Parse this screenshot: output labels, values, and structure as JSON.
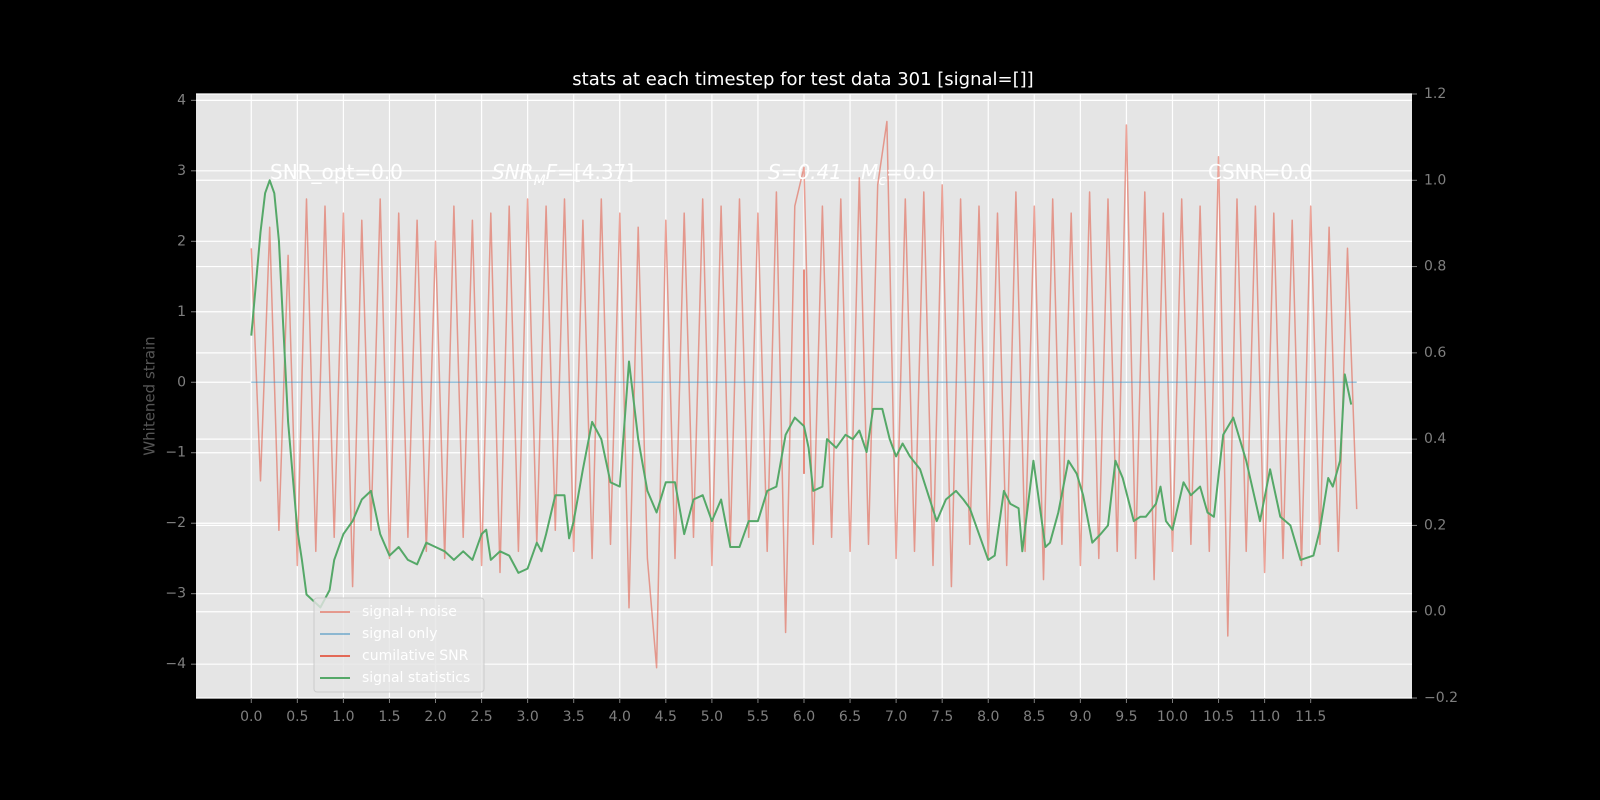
{
  "chart_data": {
    "type": "line",
    "title": "stats at each timestep for test data 301 [signal=[]]",
    "y_label": "Whitened strain",
    "grid": true,
    "legend": "lower left",
    "xlim": [
      -0.6,
      12.6
    ],
    "xticks": [
      {
        "value": 0,
        "label": "0.0"
      },
      0.5,
      {
        "value": 1,
        "label": "1.0"
      },
      1.5,
      {
        "value": 2,
        "label": "2.0"
      },
      2.5,
      {
        "value": 3,
        "label": "3.0"
      },
      3.5,
      {
        "value": 4,
        "label": "4.0"
      },
      4.5,
      {
        "value": 5,
        "label": "5.0"
      },
      5.5,
      {
        "value": 6,
        "label": "6.0"
      },
      6.5,
      {
        "value": 7,
        "label": "7.0"
      },
      7.5,
      {
        "value": 8,
        "label": "8.0"
      },
      8.5,
      {
        "value": 9,
        "label": "9.0"
      },
      9.5,
      {
        "value": 10,
        "label": "10.0"
      },
      10.5,
      {
        "value": 11,
        "label": "11.0"
      },
      11.5
    ],
    "ylim": [
      -4.48,
      4.09
    ],
    "yticks": [
      {
        "value": -4,
        "label": "−4"
      },
      {
        "value": -3,
        "label": "−3"
      },
      {
        "value": -2,
        "label": "−2"
      },
      {
        "value": -1,
        "label": "−1"
      },
      0,
      1,
      2,
      3,
      4
    ],
    "y2lim": [
      -0.2,
      1.2
    ],
    "y2ticks": [
      {
        "value": -0.2,
        "label": "−0.2"
      },
      {
        "value": 0,
        "label": "0.0"
      },
      0.2,
      0.4,
      0.6,
      0.8,
      {
        "value": 1,
        "label": "1.0"
      },
      1.2
    ],
    "annotations": [
      [
        {
          "text": "SNR_opt=0.0"
        }
      ],
      [
        {
          "text": "SNR",
          "italic": true
        },
        {
          "text": "M",
          "italic": true,
          "sub": true
        },
        {
          "text": "F",
          "italic": true
        },
        {
          "text": "=[4.37]"
        }
      ],
      [
        {
          "text": "S=0.41",
          "italic": true
        },
        {
          "text": "   M",
          "italic": true
        },
        {
          "text": "c",
          "italic": true,
          "sub": true
        },
        {
          "text": "=0.0"
        }
      ],
      [
        {
          "text": "CSNR=0.0"
        }
      ]
    ],
    "series": [
      {
        "name": "signal+ noise",
        "color": "#e24a33",
        "alpha": 0.5,
        "x": [
          0,
          0.1,
          0.2,
          0.3,
          0.4,
          0.5,
          0.6,
          0.7,
          0.8,
          0.9,
          1,
          1.1,
          1.2,
          1.3,
          1.4,
          1.5,
          1.6,
          1.7,
          1.8,
          1.9,
          2,
          2.1,
          2.2,
          2.3,
          2.4,
          2.5,
          2.6,
          2.7,
          2.8,
          2.9,
          3,
          3.1,
          3.2,
          3.3,
          3.4,
          3.5,
          3.6,
          3.7,
          3.8,
          3.9,
          4,
          4.1,
          4.2,
          4.3,
          4.4,
          4.5,
          4.6,
          4.7,
          4.8,
          4.9,
          5,
          5.1,
          5.2,
          5.3,
          5.4,
          5.5,
          5.6,
          5.7,
          5.8,
          5.9,
          6,
          6.1,
          6.2,
          6.3,
          6.4,
          6.5,
          6.6,
          6.7,
          6.8,
          6.9,
          7,
          7.1,
          7.2,
          7.3,
          7.4,
          7.5,
          7.6,
          7.7,
          7.8,
          7.9,
          8,
          8.1,
          8.2,
          8.3,
          8.4,
          8.5,
          8.6,
          8.7,
          8.8,
          8.9,
          9,
          9.1,
          9.2,
          9.3,
          9.4,
          9.5,
          9.6,
          9.7,
          9.8,
          9.9,
          10,
          10.1,
          10.2,
          10.3,
          10.4,
          10.5,
          10.6,
          10.7,
          10.8,
          10.9,
          11,
          11.1,
          11.2,
          11.3,
          11.4,
          11.5,
          11.6,
          11.7,
          11.8,
          11.9,
          12
        ],
        "values": [
          1.9,
          -1.4,
          2.2,
          -2.1,
          1.8,
          -2.6,
          2.6,
          -2.4,
          2.5,
          -2.2,
          2.4,
          -2.9,
          2.3,
          -2.1,
          2.6,
          -2.5,
          2.4,
          -2.2,
          2.3,
          -2.4,
          2.0,
          -2.5,
          2.5,
          -2.2,
          2.3,
          -2.6,
          2.4,
          -2.7,
          2.5,
          -2.4,
          2.6,
          -2.3,
          2.5,
          -2.1,
          2.6,
          -2.4,
          2.3,
          -2.5,
          2.6,
          -2.3,
          2.4,
          -3.2,
          2.2,
          -2.5,
          -4.05,
          2.3,
          -2.5,
          2.4,
          -2.2,
          2.6,
          -2.6,
          2.5,
          -2.3,
          2.6,
          -2.2,
          2.4,
          -2.4,
          2.7,
          -3.55,
          2.5,
          3.05,
          -2.3,
          2.5,
          -2.2,
          2.6,
          -2.4,
          2.9,
          -2.3,
          2.8,
          3.7,
          -2.5,
          2.6,
          -2.4,
          2.7,
          -2.6,
          2.8,
          -2.9,
          2.6,
          -2.3,
          2.5,
          -2.5,
          2.4,
          -2.6,
          2.7,
          -2.4,
          2.5,
          -2.8,
          2.6,
          -2.3,
          2.4,
          -2.6,
          2.7,
          -2.5,
          2.6,
          -2.4,
          3.65,
          -2.5,
          2.7,
          -2.8,
          2.4,
          -2.4,
          2.6,
          -2.3,
          2.5,
          -2.4,
          3.2,
          -3.6,
          2.6,
          -2.4,
          2.5,
          -2.7,
          2.4,
          -2.5,
          2.3,
          -2.6,
          2.5,
          -2.3,
          2.2,
          -2.4,
          1.9,
          -1.8
        ]
      },
      {
        "name": "signal only",
        "color": "#348abd",
        "alpha": 0.5,
        "x": [
          0,
          12
        ],
        "values": [
          0,
          0
        ]
      },
      {
        "name": "cumilative SNR",
        "color": "#e24a33",
        "alpha": 0.8,
        "x": [
          6,
          6
        ],
        "values": [
          1.6,
          -1.3
        ]
      },
      {
        "name": "signal statistics",
        "color": "#55a868",
        "alpha": 1,
        "axis": "y2",
        "x": [
          0,
          0.1,
          0.15,
          0.2,
          0.25,
          0.3,
          0.4,
          0.5,
          0.55,
          0.6,
          0.7,
          0.75,
          0.8,
          0.85,
          0.9,
          1,
          1.1,
          1.2,
          1.3,
          1.4,
          1.5,
          1.6,
          1.7,
          1.8,
          1.9,
          2,
          2.1,
          2.2,
          2.3,
          2.4,
          2.5,
          2.55,
          2.6,
          2.7,
          2.8,
          2.9,
          3,
          3.1,
          3.15,
          3.2,
          3.3,
          3.4,
          3.45,
          3.5,
          3.6,
          3.7,
          3.8,
          3.9,
          4,
          4.1,
          4.2,
          4.3,
          4.4,
          4.5,
          4.6,
          4.7,
          4.8,
          4.9,
          5,
          5.1,
          5.2,
          5.3,
          5.4,
          5.5,
          5.6,
          5.7,
          5.8,
          5.9,
          6,
          6.05,
          6.1,
          6.2,
          6.25,
          6.35,
          6.45,
          6.53,
          6.6,
          6.68,
          6.75,
          6.85,
          6.93,
          7,
          7.07,
          7.15,
          7.26,
          7.35,
          7.44,
          7.54,
          7.65,
          7.73,
          7.8,
          7.9,
          8,
          8.07,
          8.17,
          8.24,
          8.33,
          8.37,
          8.49,
          8.62,
          8.67,
          8.76,
          8.87,
          8.96,
          9.03,
          9.13,
          9.22,
          9.3,
          9.38,
          9.46,
          9.58,
          9.65,
          9.71,
          9.82,
          9.87,
          9.93,
          10,
          10.12,
          10.2,
          10.3,
          10.38,
          10.45,
          10.55,
          10.66,
          10.8,
          10.95,
          11.06,
          11.17,
          11.28,
          11.39,
          11.53,
          11.6,
          11.69,
          11.74,
          11.82,
          11.87,
          11.94
        ],
        "values": [
          0.64,
          0.88,
          0.97,
          1.0,
          0.97,
          0.86,
          0.44,
          0.19,
          0.12,
          0.04,
          0.02,
          0.01,
          0.03,
          0.05,
          0.12,
          0.18,
          0.21,
          0.26,
          0.28,
          0.18,
          0.13,
          0.15,
          0.12,
          0.11,
          0.16,
          0.15,
          0.14,
          0.12,
          0.14,
          0.12,
          0.18,
          0.19,
          0.12,
          0.14,
          0.13,
          0.09,
          0.1,
          0.16,
          0.14,
          0.18,
          0.27,
          0.27,
          0.17,
          0.21,
          0.33,
          0.44,
          0.4,
          0.3,
          0.29,
          0.58,
          0.4,
          0.28,
          0.23,
          0.3,
          0.3,
          0.18,
          0.26,
          0.27,
          0.21,
          0.26,
          0.15,
          0.15,
          0.21,
          0.21,
          0.28,
          0.29,
          0.41,
          0.45,
          0.43,
          0.38,
          0.28,
          0.29,
          0.4,
          0.38,
          0.41,
          0.4,
          0.42,
          0.37,
          0.47,
          0.47,
          0.4,
          0.36,
          0.39,
          0.36,
          0.33,
          0.27,
          0.21,
          0.26,
          0.28,
          0.26,
          0.24,
          0.18,
          0.12,
          0.13,
          0.28,
          0.25,
          0.24,
          0.14,
          0.35,
          0.15,
          0.16,
          0.23,
          0.35,
          0.32,
          0.27,
          0.16,
          0.18,
          0.2,
          0.35,
          0.31,
          0.21,
          0.22,
          0.22,
          0.25,
          0.29,
          0.21,
          0.19,
          0.3,
          0.27,
          0.29,
          0.23,
          0.22,
          0.41,
          0.45,
          0.35,
          0.21,
          0.33,
          0.22,
          0.2,
          0.12,
          0.13,
          0.19,
          0.31,
          0.29,
          0.35,
          0.55,
          0.48
        ]
      }
    ]
  }
}
